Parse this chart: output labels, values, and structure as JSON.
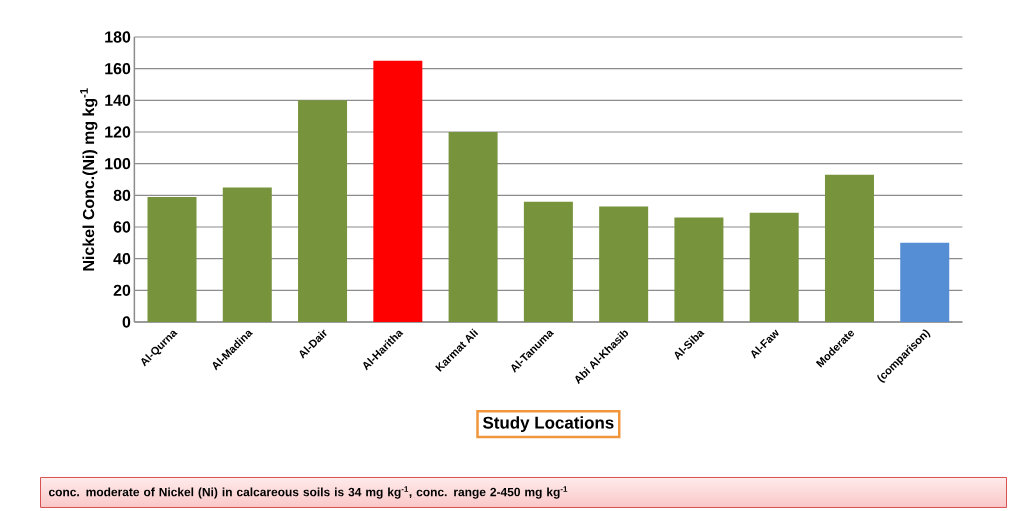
{
  "chart_data": {
    "type": "bar",
    "ylabel": "Nickel Conc.(Ni) mg kg$^{-1}$",
    "xlabel": "Study Locations",
    "categories": [
      "Al-Qurna",
      "Al-Madina",
      "Al-Dair",
      "Al-Haritha",
      "Karmat Ali",
      "Al-Tanuma",
      "Abi Al-Khasib",
      "Al-Siba",
      "Al-Faw",
      "Moderate",
      "(comparison)"
    ],
    "values": [
      79,
      85,
      140,
      165,
      120,
      76,
      73,
      66,
      69,
      93,
      50
    ],
    "colors": [
      "#77933c",
      "#77933c",
      "#77933c",
      "#ff0000",
      "#77933c",
      "#77933c",
      "#77933c",
      "#77933c",
      "#77933c",
      "#77933c",
      "#558ed5"
    ],
    "ylim": [
      0,
      180
    ],
    "yticks": [
      0,
      20,
      40,
      60,
      80,
      100,
      120,
      140,
      160,
      180
    ],
    "grid": "y",
    "annotations": [
      "conc. moderate of Nickel (Ni) in calcareous soils is 34 mg kg$^{-1}$, conc. range 2-450 mg kg$^{-1}$"
    ]
  }
}
